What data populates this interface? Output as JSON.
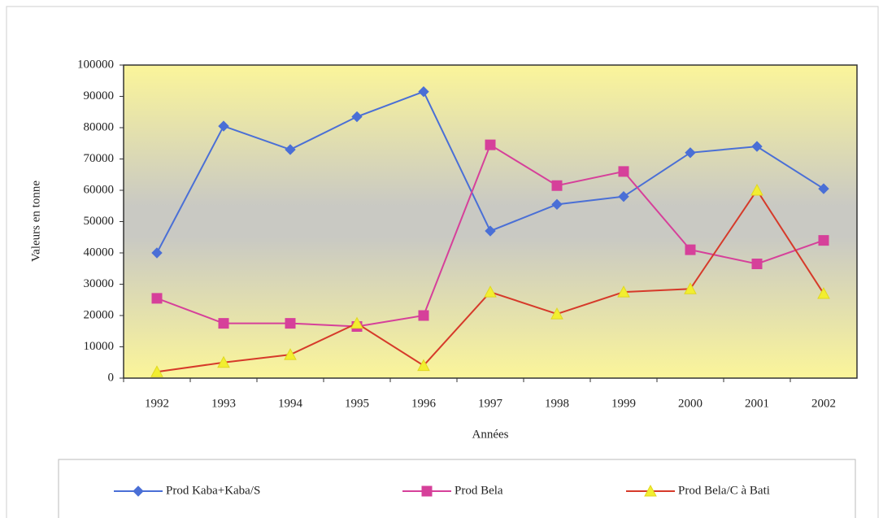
{
  "chart_data": {
    "type": "line",
    "x_label": "Années",
    "y_label": "Valeurs en tonne",
    "categories": [
      "1992",
      "1993",
      "1994",
      "1995",
      "1996",
      "1997",
      "1998",
      "1999",
      "2000",
      "2001",
      "2002"
    ],
    "series": [
      {
        "name": "Prod Kaba+Kaba/S",
        "color": "#4a6fd6",
        "marker": "diamond",
        "marker_color": "#4a6fd6",
        "values": [
          40000,
          80500,
          73000,
          83500,
          91500,
          47000,
          55500,
          58000,
          72000,
          74000,
          60500
        ]
      },
      {
        "name": "Prod Bela",
        "color": "#d6409a",
        "marker": "square",
        "marker_color": "#d6409a",
        "values": [
          25500,
          17500,
          17500,
          16500,
          20000,
          74500,
          61500,
          66000,
          41000,
          36500,
          44000
        ]
      },
      {
        "name": "Prod Bela/C à Bati",
        "color": "#d63a2a",
        "marker": "triangle",
        "marker_color": "#f2ee30",
        "values": [
          2000,
          5000,
          7500,
          17500,
          4000,
          27500,
          20500,
          27500,
          28500,
          60000,
          27000
        ]
      }
    ],
    "ylim": [
      0,
      100000
    ],
    "yticks": [
      0,
      10000,
      20000,
      30000,
      40000,
      50000,
      60000,
      70000,
      80000,
      90000,
      100000
    ],
    "legend": "bottom"
  }
}
